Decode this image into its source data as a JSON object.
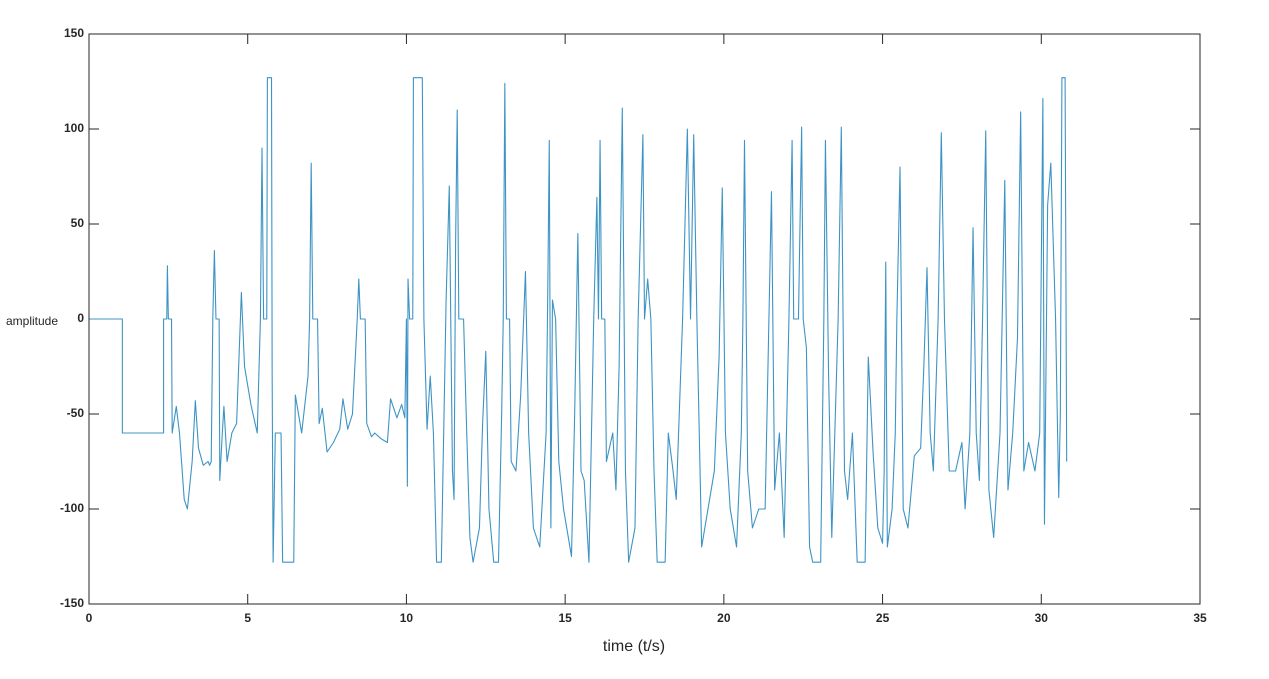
{
  "chart_data": {
    "type": "line",
    "xlabel": "time (t/s)",
    "ylabel": "amplitude",
    "color": "#3d94c4",
    "grid": false,
    "xlim": [
      0,
      35
    ],
    "xticks": [
      0,
      5,
      10,
      15,
      20,
      25,
      30,
      35
    ],
    "ylim": [
      -150,
      150
    ],
    "yticks": [
      -150,
      -100,
      -50,
      0,
      50,
      100,
      150
    ],
    "x": [
      0,
      1.05,
      1.05,
      2.35,
      2.35,
      2.45,
      2.47,
      2.5,
      2.6,
      2.62,
      2.75,
      2.85,
      3.0,
      3.1,
      3.25,
      3.35,
      3.45,
      3.6,
      3.75,
      3.8,
      3.85,
      3.9,
      3.95,
      4.0,
      4.1,
      4.12,
      4.2,
      4.25,
      4.35,
      4.5,
      4.65,
      4.8,
      4.9,
      5.1,
      5.3,
      5.4,
      5.45,
      5.5,
      5.6,
      5.62,
      5.75,
      5.77,
      5.8,
      5.87,
      6.05,
      6.1,
      6.45,
      6.5,
      6.7,
      6.9,
      6.95,
      7.0,
      7.05,
      7.2,
      7.25,
      7.35,
      7.5,
      7.7,
      7.9,
      8.0,
      8.15,
      8.3,
      8.45,
      8.5,
      8.55,
      8.7,
      8.75,
      8.9,
      9.0,
      9.2,
      9.4,
      9.5,
      9.7,
      9.85,
      9.95,
      10.0,
      10.03,
      10.05,
      10.1,
      10.2,
      10.22,
      10.5,
      10.55,
      10.65,
      10.75,
      10.85,
      10.95,
      11.1,
      11.25,
      11.35,
      11.45,
      11.5,
      11.55,
      11.6,
      11.65,
      11.8,
      11.9,
      12.0,
      12.1,
      12.3,
      12.4,
      12.5,
      12.6,
      12.75,
      12.9,
      13.0,
      13.05,
      13.1,
      13.15,
      13.25,
      13.3,
      13.45,
      13.6,
      13.75,
      13.85,
      14.0,
      14.2,
      14.4,
      14.45,
      14.5,
      14.55,
      14.6,
      14.7,
      14.8,
      14.95,
      15.2,
      15.3,
      15.4,
      15.5,
      15.6,
      15.75,
      15.9,
      16.0,
      16.05,
      16.1,
      16.15,
      16.25,
      16.3,
      16.5,
      16.6,
      16.7,
      16.8,
      16.9,
      17.0,
      17.2,
      17.3,
      17.45,
      17.5,
      17.6,
      17.7,
      17.8,
      17.9,
      18.15,
      18.25,
      18.4,
      18.5,
      18.7,
      18.85,
      18.95,
      19.05,
      19.15,
      19.3,
      19.5,
      19.7,
      19.85,
      19.95,
      20.05,
      20.2,
      20.4,
      20.55,
      20.6,
      20.65,
      20.75,
      20.9,
      21.1,
      21.3,
      21.5,
      21.6,
      21.75,
      21.9,
      22.05,
      22.15,
      22.2,
      22.35,
      22.45,
      22.5,
      22.6,
      22.7,
      22.8,
      23.05,
      23.15,
      23.2,
      23.3,
      23.4,
      23.6,
      23.7,
      23.8,
      23.9,
      24.05,
      24.2,
      24.45,
      24.55,
      24.7,
      24.85,
      25.0,
      25.05,
      25.1,
      25.15,
      25.3,
      25.4,
      25.45,
      25.55,
      25.65,
      25.8,
      26.0,
      26.2,
      26.3,
      26.4,
      26.5,
      26.6,
      26.75,
      26.85,
      26.95,
      27.1,
      27.3,
      27.5,
      27.6,
      27.75,
      27.85,
      27.95,
      28.05,
      28.15,
      28.25,
      28.35,
      28.5,
      28.7,
      28.85,
      28.95,
      29.1,
      29.25,
      29.35,
      29.45,
      29.6,
      29.8,
      29.95,
      30.05,
      30.1,
      30.2,
      30.3,
      30.45,
      30.55,
      30.6,
      30.65,
      30.75,
      30.8
    ],
    "values": [
      0,
      0,
      -60,
      -60,
      0,
      0,
      28,
      0,
      0,
      -60,
      -46,
      -60,
      -95,
      -100,
      -75,
      -43,
      -68,
      -77,
      -75,
      -77,
      -75,
      0,
      36,
      0,
      0,
      -85,
      -60,
      -46,
      -75,
      -60,
      -55,
      14,
      -25,
      -45,
      -60,
      0,
      90,
      0,
      0,
      127,
      127,
      -30,
      -128,
      -60,
      -60,
      -128,
      -128,
      -40,
      -60,
      -30,
      0,
      82,
      0,
      0,
      -55,
      -47,
      -70,
      -65,
      -58,
      -42,
      -58,
      -50,
      0,
      21,
      0,
      0,
      -55,
      -62,
      -60,
      -63,
      -65,
      -42,
      -52,
      -45,
      -52,
      0,
      -88,
      21,
      0,
      0,
      127,
      127,
      0,
      -58,
      -30,
      -60,
      -128,
      -128,
      10,
      70,
      -80,
      -95,
      41,
      110,
      0,
      0,
      -60,
      -115,
      -128,
      -110,
      -55,
      -17,
      -100,
      -128,
      -128,
      -50,
      0,
      124,
      0,
      0,
      -75,
      -80,
      -40,
      25,
      -60,
      -110,
      -120,
      -60,
      10,
      94,
      -110,
      10,
      0,
      -75,
      -100,
      -125,
      -50,
      45,
      -80,
      -85,
      -128,
      0,
      64,
      0,
      94,
      0,
      0,
      -75,
      -60,
      -90,
      -25,
      111,
      -80,
      -128,
      -110,
      0,
      97,
      0,
      21,
      0,
      -80,
      -128,
      -128,
      -60,
      -80,
      -95,
      0,
      100,
      0,
      97,
      0,
      -120,
      -100,
      -80,
      -20,
      69,
      -60,
      -100,
      -120,
      -60,
      0,
      94,
      -80,
      -110,
      -100,
      -100,
      67,
      -90,
      -60,
      -115,
      0,
      94,
      0,
      0,
      101,
      0,
      -15,
      -120,
      -128,
      -128,
      0,
      94,
      -30,
      -115,
      0,
      101,
      -80,
      -95,
      -60,
      -128,
      -128,
      -20,
      -70,
      -110,
      -118,
      -80,
      30,
      -120,
      -100,
      -60,
      0,
      80,
      -100,
      -110,
      -72,
      -68,
      -25,
      27,
      -60,
      -80,
      0,
      98,
      0,
      -80,
      -80,
      -65,
      -100,
      -60,
      48,
      -60,
      -85,
      0,
      99,
      -90,
      -115,
      -60,
      73,
      -90,
      -60,
      -10,
      109,
      -80,
      -65,
      -80,
      -60,
      116,
      -108,
      60,
      82,
      0,
      -94,
      -50,
      127,
      127,
      -75
    ]
  }
}
